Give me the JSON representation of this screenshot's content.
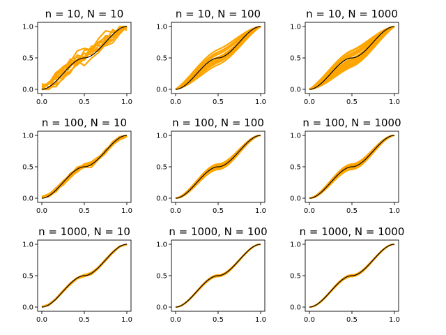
{
  "figure": {
    "background": "#ffffff",
    "layout": "3x3 grid of small line plots",
    "sample_color": "#FFA500",
    "reference_color": "#000000"
  },
  "chart_data": [
    {
      "type": "line",
      "title": "n = 10, N = 10",
      "n": 10,
      "N": 10,
      "xlim": [
        0,
        1
      ],
      "ylim": [
        0,
        1
      ],
      "xticks": [
        "0.0",
        "0.5",
        "1.0"
      ],
      "yticks": [
        "0.0",
        "0.5",
        "1.0"
      ],
      "reference": "black S-shaped cumulative curve with plateau at 0.5 near x = 0.5",
      "samples": "orange step-like curves, widest spread"
    },
    {
      "type": "line",
      "title": "n = 10, N = 100",
      "n": 10,
      "N": 100,
      "xlim": [
        0,
        1
      ],
      "ylim": [
        0,
        1
      ],
      "xticks": [
        "0.0",
        "0.5",
        "1.0"
      ],
      "yticks": [
        "0.0",
        "0.5",
        "1.0"
      ],
      "reference": "black S-shaped cumulative curve with plateau at 0.5 near x = 0.5",
      "samples": "orange band, close to straight line"
    },
    {
      "type": "line",
      "title": "n = 10, N = 1000",
      "n": 10,
      "N": 1000,
      "xlim": [
        0,
        1
      ],
      "ylim": [
        0,
        1
      ],
      "xticks": [
        "0.0",
        "0.5",
        "1.0"
      ],
      "yticks": [
        "0.0",
        "0.5",
        "1.0"
      ],
      "reference": "black S-shaped cumulative curve with plateau at 0.5 near x = 0.5",
      "samples": "orange narrow band, close to straight line"
    },
    {
      "type": "line",
      "title": "n = 100, N = 10",
      "n": 100,
      "N": 10,
      "xlim": [
        0,
        1
      ],
      "ylim": [
        0,
        1
      ],
      "xticks": [
        "0.0",
        "0.5",
        "1.0"
      ],
      "yticks": [
        "0.0",
        "0.5",
        "1.0"
      ],
      "reference": "black S-shaped cumulative curve with plateau at 0.5 near x = 0.5",
      "samples": "orange curves following reference with moderate spread"
    },
    {
      "type": "line",
      "title": "n = 100, N = 100",
      "n": 100,
      "N": 100,
      "xlim": [
        0,
        1
      ],
      "ylim": [
        0,
        1
      ],
      "xticks": [
        "0.0",
        "0.5",
        "1.0"
      ],
      "yticks": [
        "0.0",
        "0.5",
        "1.0"
      ],
      "reference": "black S-shaped cumulative curve with plateau at 0.5 near x = 0.5",
      "samples": "orange curves closely following reference"
    },
    {
      "type": "line",
      "title": "n = 100, N = 1000",
      "n": 100,
      "N": 1000,
      "xlim": [
        0,
        1
      ],
      "ylim": [
        0,
        1
      ],
      "xticks": [
        "0.0",
        "0.5",
        "1.0"
      ],
      "yticks": [
        "0.0",
        "0.5",
        "1.0"
      ],
      "reference": "black S-shaped cumulative curve with plateau at 0.5 near x = 0.5",
      "samples": "orange curves closely following reference"
    },
    {
      "type": "line",
      "title": "n = 1000, N = 10",
      "n": 1000,
      "N": 10,
      "xlim": [
        0,
        1
      ],
      "ylim": [
        0,
        1
      ],
      "xticks": [
        "0.0",
        "0.5",
        "1.0"
      ],
      "yticks": [
        "0.0",
        "0.5",
        "1.0"
      ],
      "reference": "black S-shaped cumulative curve with plateau at 0.5 near x = 0.5",
      "samples": "orange curves following reference with small spread"
    },
    {
      "type": "line",
      "title": "n = 1000, N = 100",
      "n": 1000,
      "N": 100,
      "xlim": [
        0,
        1
      ],
      "ylim": [
        0,
        1
      ],
      "xticks": [
        "0.0",
        "0.5",
        "1.0"
      ],
      "yticks": [
        "0.0",
        "0.5",
        "1.0"
      ],
      "reference": "black S-shaped cumulative curve with plateau at 0.5 near x = 0.5",
      "samples": "orange curves nearly identical to reference"
    },
    {
      "type": "line",
      "title": "n = 1000, N = 1000",
      "n": 1000,
      "N": 1000,
      "xlim": [
        0,
        1
      ],
      "ylim": [
        0,
        1
      ],
      "xticks": [
        "0.0",
        "0.5",
        "1.0"
      ],
      "yticks": [
        "0.0",
        "0.5",
        "1.0"
      ],
      "reference": "black S-shaped cumulative curve with plateau at 0.5 near x = 0.5",
      "samples": "orange curves nearly identical to reference"
    }
  ]
}
